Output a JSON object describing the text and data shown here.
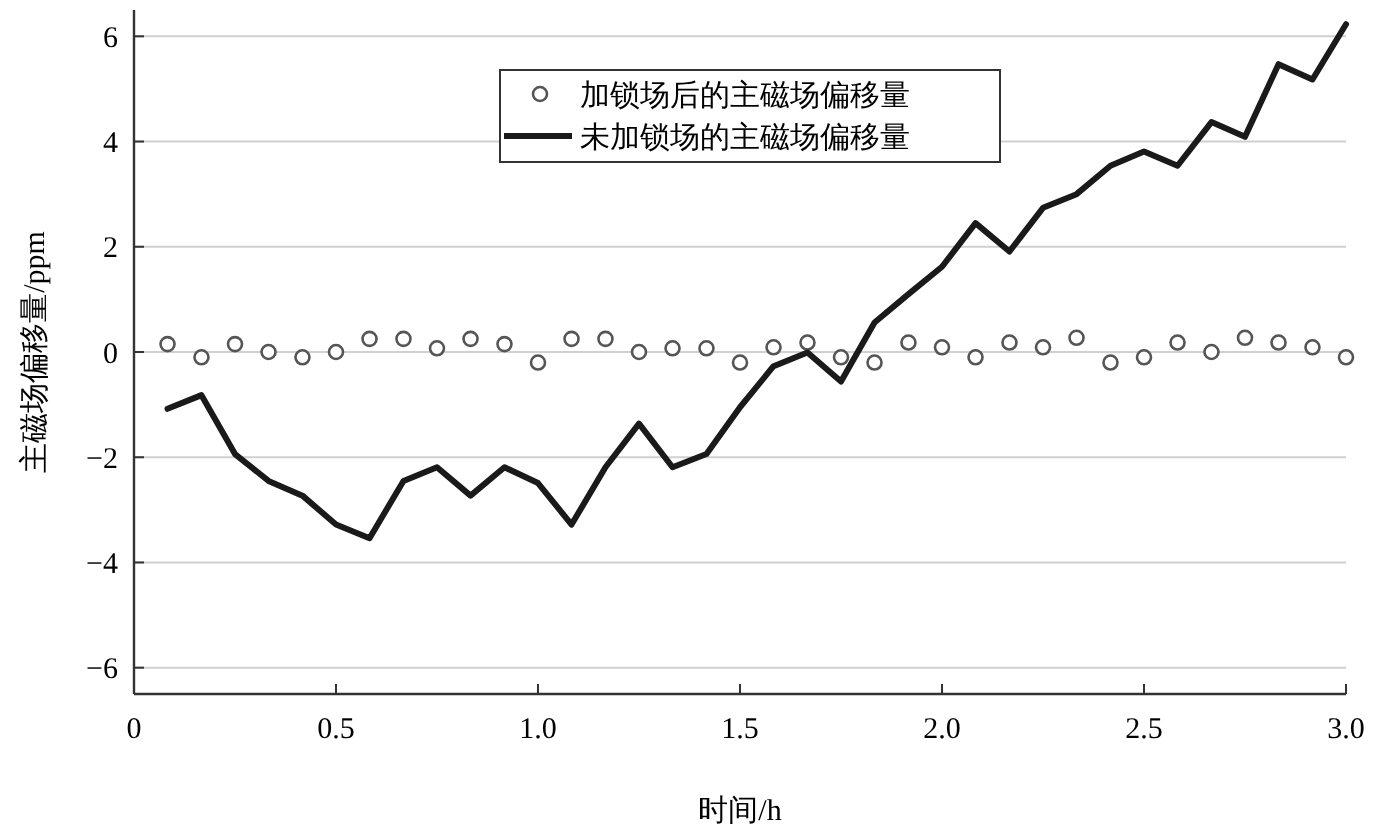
{
  "chart_data": {
    "type": "line",
    "xlabel": "时间/h",
    "ylabel": "主磁场偏移量/ppm",
    "xlim": [
      0,
      3
    ],
    "xticks": [
      0,
      0.5,
      {
        "value": 1,
        "label": "1.0"
      },
      1.5,
      {
        "value": 2,
        "label": "2.0"
      },
      2.5,
      {
        "value": 3,
        "label": "3.0"
      }
    ],
    "ylim": [
      -6.5,
      6.5
    ],
    "yticks": [
      {
        "value": -6,
        "label": "−6"
      },
      {
        "value": -4,
        "label": "−4"
      },
      {
        "value": -2,
        "label": "−2"
      },
      0,
      2,
      4,
      6
    ],
    "grid": "y",
    "legend": "top",
    "x": [
      0.083,
      0.167,
      0.25,
      0.333,
      0.417,
      0.5,
      0.583,
      0.667,
      0.75,
      0.833,
      0.917,
      1,
      1.083,
      1.167,
      1.25,
      1.333,
      1.417,
      1.5,
      1.583,
      1.667,
      1.75,
      1.833,
      1.917,
      2,
      2.083,
      2.167,
      2.25,
      2.333,
      2.417,
      2.5,
      2.583,
      2.667,
      2.75,
      2.833,
      2.917,
      3
    ],
    "series": [
      {
        "name": "加锁场后的主磁场偏移量",
        "type": "scatter",
        "marker": "circle",
        "color": "#555555",
        "values": [
          0.15,
          -0.1,
          0.15,
          0,
          -0.1,
          0,
          0.25,
          0.25,
          0.07,
          0.25,
          0.15,
          -0.2,
          0.25,
          0.25,
          0,
          0.07,
          0.07,
          -0.2,
          0.09,
          0.18,
          -0.1,
          -0.2,
          0.18,
          0.09,
          -0.1,
          0.18,
          0.09,
          0.27,
          -0.2,
          -0.1,
          0.18,
          0,
          0.27,
          0.18,
          0.09,
          -0.1
        ]
      },
      {
        "name": "未加锁场的主磁场偏移量",
        "marker": "none",
        "line_style": "solid",
        "color": "#1a1a1a",
        "values": [
          -1.08,
          -0.82,
          -1.94,
          -2.45,
          -2.73,
          -3.28,
          -3.54,
          -2.45,
          -2.19,
          -2.73,
          -2.19,
          -2.49,
          -3.28,
          -2.19,
          -1.36,
          -2.19,
          -1.94,
          -1.05,
          -0.27,
          -0.01,
          -0.56,
          0.56,
          1.1,
          1.62,
          2.45,
          1.91,
          2.74,
          3.0,
          3.54,
          3.81,
          3.54,
          4.37,
          4.09,
          5.47,
          5.18,
          6.23
        ]
      }
    ]
  }
}
